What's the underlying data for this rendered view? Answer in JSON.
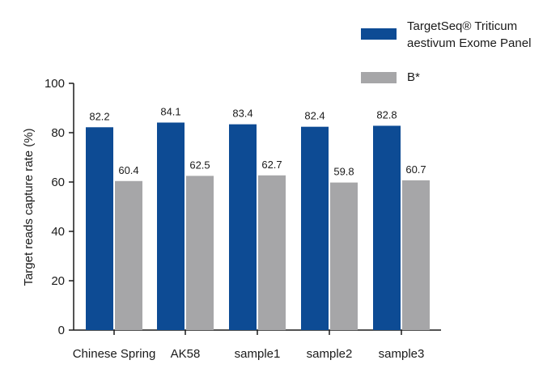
{
  "chart_data": {
    "type": "bar",
    "categories": [
      "Chinese Spring",
      "AK58",
      "sample1",
      "sample2",
      "sample3"
    ],
    "series": [
      {
        "name": "TargetSeq® Triticum aestivum Exome Panel",
        "color": "#0d4b94",
        "values": [
          82.2,
          84.1,
          83.4,
          82.4,
          82.8
        ],
        "labels": [
          "82.2",
          "84.1",
          "83.4",
          "82.4",
          "82.8"
        ]
      },
      {
        "name": "B*",
        "color": "#a6a6a8",
        "values": [
          60.4,
          62.5,
          62.7,
          59.8,
          60.7
        ],
        "labels": [
          "60.4",
          "62.5",
          "62.7",
          "59.8",
          "60.7"
        ]
      }
    ],
    "ylabel": "Target reads capture rate (%)",
    "xlabel": "",
    "ylim": [
      0,
      100
    ],
    "yticks": [
      0,
      20,
      40,
      60,
      80,
      100
    ],
    "ytick_labels": [
      "0",
      "20",
      "40",
      "60",
      "80",
      "100"
    ],
    "grid": false,
    "legend_position": "top-right"
  }
}
